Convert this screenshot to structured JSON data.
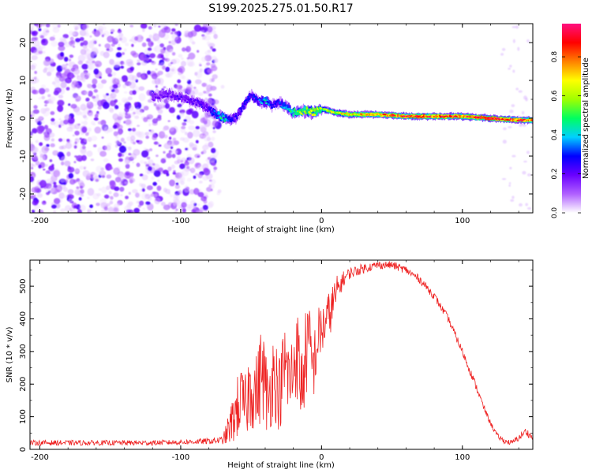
{
  "title": "S199.2025.275.01.50.R17",
  "colorbar": {
    "label": "Normalized spectral amplitude",
    "ticks": [
      "0.0",
      "0.2",
      "0.4",
      "0.6",
      "0.8"
    ],
    "tick_values": [
      0.0,
      0.2,
      0.4,
      0.6,
      0.8
    ],
    "range": [
      0,
      0.97
    ],
    "colors": [
      "#ffffff",
      "#b060ff",
      "#6a00ff",
      "#0000ff",
      "#00d0ff",
      "#00ff60",
      "#a0ff00",
      "#ffff00",
      "#ff8000",
      "#ff0000",
      "#ff1080"
    ]
  },
  "chart_data": [
    {
      "type": "heatmap",
      "xlabel": "Height of straight line (km)",
      "ylabel": "Frequency (Hz)",
      "xlim": [
        -207,
        150
      ],
      "ylim": [
        -25,
        25
      ],
      "xticks": [
        -200,
        -100,
        0,
        100
      ],
      "xtick_labels": [
        "-200",
        "-100",
        "0",
        "100"
      ],
      "yticks": [
        -20,
        -10,
        0,
        10,
        20
      ],
      "ytick_labels": [
        "-20",
        "-10",
        "0",
        "10",
        "20"
      ],
      "noise_region_x": [
        -207,
        -75
      ],
      "signal_ridge": {
        "x": [
          -120,
          -110,
          -100,
          -90,
          -80,
          -75,
          -70,
          -65,
          -60,
          -55,
          -50,
          -45,
          -40,
          -35,
          -30,
          -25,
          -20,
          -15,
          -10,
          -5,
          0,
          10,
          20,
          40,
          60,
          80,
          100,
          120,
          140,
          150
        ],
        "freq": [
          5.5,
          6.5,
          5.5,
          4.5,
          2.5,
          1.0,
          0.2,
          -0.5,
          0.5,
          3.5,
          6.0,
          4.5,
          4.5,
          3.5,
          4.0,
          3.0,
          1.5,
          1.8,
          2.0,
          1.5,
          2.5,
          1.5,
          1.0,
          1.0,
          0.5,
          0.5,
          0.5,
          0.0,
          -0.5,
          -0.5
        ],
        "amplitude": [
          0.18,
          0.2,
          0.22,
          0.2,
          0.25,
          0.35,
          0.5,
          0.3,
          0.25,
          0.3,
          0.28,
          0.32,
          0.45,
          0.3,
          0.3,
          0.4,
          0.55,
          0.6,
          0.6,
          0.65,
          0.6,
          0.7,
          0.75,
          0.8,
          0.9,
          0.92,
          0.9,
          0.95,
          0.9,
          0.88
        ]
      }
    },
    {
      "type": "line",
      "xlabel": "Height of straight line (km)",
      "ylabel": "SNR (10 * v/v)",
      "xlim": [
        -207,
        150
      ],
      "ylim": [
        0,
        580
      ],
      "xticks": [
        -200,
        -100,
        0,
        100
      ],
      "xtick_labels": [
        "-200",
        "-100",
        "0",
        "100"
      ],
      "yticks": [
        0,
        100,
        200,
        300,
        400,
        500
      ],
      "ytick_labels": [
        "0",
        "100",
        "200",
        "300",
        "400",
        "500"
      ],
      "series": [
        {
          "name": "SNR",
          "color": "#ee2222",
          "x": [
            -207,
            -180,
            -150,
            -120,
            -100,
            -80,
            -70,
            -66,
            -62,
            -58,
            -54,
            -50,
            -46,
            -42,
            -38,
            -34,
            -30,
            -26,
            -22,
            -18,
            -14,
            -10,
            -6,
            -2,
            2,
            6,
            10,
            15,
            20,
            30,
            40,
            50,
            60,
            70,
            80,
            90,
            100,
            110,
            115,
            120,
            125,
            130,
            135,
            140,
            145,
            150
          ],
          "y": [
            20,
            20,
            20,
            20,
            22,
            25,
            28,
            60,
            100,
            150,
            130,
            200,
            170,
            250,
            140,
            240,
            170,
            260,
            200,
            310,
            190,
            330,
            250,
            350,
            380,
            420,
            470,
            520,
            540,
            555,
            565,
            565,
            550,
            520,
            470,
            400,
            300,
            190,
            130,
            80,
            40,
            25,
            20,
            35,
            55,
            35
          ],
          "noise_amplitude": [
            8,
            8,
            8,
            8,
            8,
            9,
            12,
            50,
            80,
            110,
            100,
            140,
            120,
            160,
            110,
            140,
            120,
            140,
            130,
            150,
            130,
            150,
            110,
            90,
            80,
            70,
            60,
            25,
            18,
            15,
            12,
            12,
            12,
            12,
            12,
            12,
            12,
            12,
            10,
            8,
            8,
            8,
            8,
            10,
            12,
            10
          ]
        }
      ]
    }
  ]
}
